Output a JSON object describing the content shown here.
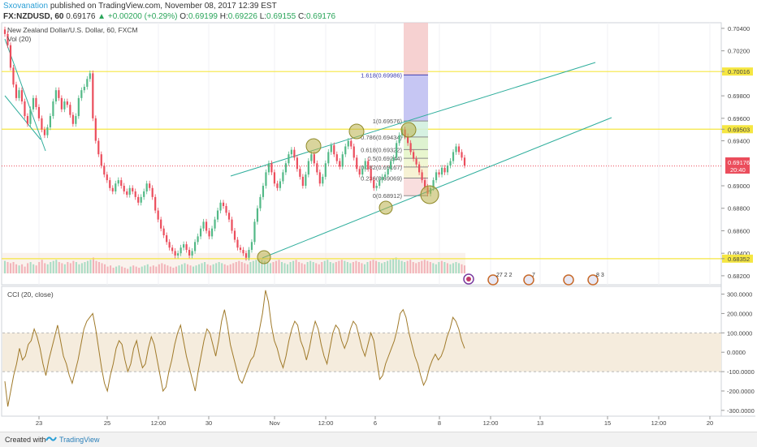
{
  "header": {
    "publisher": "Sxovanation",
    "published_text": "published on TradingView.com, November 08, 2017 12:39 EST",
    "symbol": "FX:NZDUSD, 60",
    "last": "0.69176",
    "change": "▲ +0.00200 (+0.29%)",
    "open_label": "O:",
    "open": "0.69199",
    "high_label": "H:",
    "high": "0.69226",
    "low_label": "L:",
    "low": "0.69155",
    "close_label": "C:",
    "close": "0.69176"
  },
  "footer": {
    "created_with": "Created with",
    "brand": "TradingView"
  },
  "colors": {
    "up": "#53b987",
    "down": "#eb4d5c",
    "hline": "#f5e642",
    "channel": "#2fae9c",
    "cci": "#a07a2a",
    "band": "#f5ecdd",
    "fib_upper": "#b8b8f0",
    "fib_top": "#f4c6c6"
  },
  "chart_data": [
    {
      "type": "candlestick",
      "title": "New Zealand Dollar/U.S. Dollar, 60, FXCM",
      "indicator_label": "Vol (20)",
      "x_tick_labels": [
        "23",
        "25",
        "12:00",
        "30",
        "Nov",
        "12:00",
        "6",
        "8",
        "12:00",
        "13",
        "15",
        "12:00",
        "20"
      ],
      "y_tick_labels": [
        "0.70400",
        "0.70200",
        "0.70016",
        "0.69800",
        "0.69600",
        "0.69503",
        "0.69400",
        "0.69176",
        "0.69000",
        "0.68800",
        "0.68600",
        "0.68400",
        "0.68352",
        "0.68200"
      ],
      "ylim": [
        0.6812,
        0.7045
      ],
      "current_price": {
        "price": "0.69176",
        "countdown": "20:40"
      },
      "horizontal_levels": [
        {
          "price": 0.70016,
          "label": "0.70016"
        },
        {
          "price": 0.69503,
          "label": "0.69503"
        },
        {
          "price": 0.68352,
          "label": "0.68352"
        }
      ],
      "fibonacci": [
        {
          "price": 0.69986,
          "label": "1.618(0.69986)"
        },
        {
          "price": 0.69576,
          "label": "1(0.69576)"
        },
        {
          "price": 0.69434,
          "label": "0.786(0.69434)"
        },
        {
          "price": 0.69322,
          "label": "0.618(0.69322)"
        },
        {
          "price": 0.69244,
          "label": "0.5(0.69244)"
        },
        {
          "price": 0.69167,
          "label": "0.382(0.69167)"
        },
        {
          "price": 0.69069,
          "label": "0.236(0.69069)"
        },
        {
          "price": 0.68912,
          "label": "0(0.68912)"
        }
      ],
      "event_labels": [
        "27 2 2",
        "7",
        "8 3"
      ],
      "close_series": [
        0.7035,
        0.7025,
        0.7005,
        0.699,
        0.6978,
        0.6985,
        0.6975,
        0.6962,
        0.6955,
        0.6968,
        0.6978,
        0.697,
        0.696,
        0.695,
        0.6945,
        0.6952,
        0.6962,
        0.6975,
        0.6985,
        0.6978,
        0.6968,
        0.6975,
        0.6972,
        0.6963,
        0.6955,
        0.6962,
        0.6978,
        0.6985,
        0.6988,
        0.6995,
        0.7,
        0.696,
        0.694,
        0.6928,
        0.6918,
        0.691,
        0.6905,
        0.6898,
        0.6895,
        0.6902,
        0.6905,
        0.69,
        0.6895,
        0.6892,
        0.6898,
        0.6895,
        0.689,
        0.6885,
        0.689,
        0.6895,
        0.6902,
        0.6898,
        0.689,
        0.6878,
        0.687,
        0.6862,
        0.6856,
        0.685,
        0.6845,
        0.6842,
        0.6838,
        0.684,
        0.6845,
        0.6848,
        0.6843,
        0.6838,
        0.6842,
        0.685,
        0.6855,
        0.6862,
        0.6868,
        0.686,
        0.6855,
        0.6862,
        0.687,
        0.6878,
        0.6885,
        0.6882,
        0.6876,
        0.687,
        0.686,
        0.6852,
        0.6845,
        0.6843,
        0.684,
        0.6836,
        0.6843,
        0.685,
        0.6868,
        0.688,
        0.689,
        0.69,
        0.6912,
        0.692,
        0.6912,
        0.6902,
        0.6898,
        0.6904,
        0.6912,
        0.692,
        0.6928,
        0.6932,
        0.6925,
        0.6915,
        0.6908,
        0.69,
        0.691,
        0.6922,
        0.6928,
        0.692,
        0.6912,
        0.6902,
        0.6908,
        0.692,
        0.693,
        0.6936,
        0.6928,
        0.6922,
        0.6917,
        0.6928,
        0.6935,
        0.694,
        0.6935,
        0.6925,
        0.6915,
        0.691,
        0.6915,
        0.6922,
        0.6915,
        0.6905,
        0.6898,
        0.69,
        0.6905,
        0.6908,
        0.691,
        0.6915,
        0.6922,
        0.6925,
        0.6938,
        0.6945,
        0.695,
        0.6944,
        0.6938,
        0.693,
        0.6924,
        0.6919,
        0.6912,
        0.6905,
        0.6899,
        0.6893,
        0.6898,
        0.6905,
        0.6912,
        0.691,
        0.6916,
        0.6912,
        0.6918,
        0.6922,
        0.693,
        0.6935,
        0.693,
        0.6925,
        0.6918
      ],
      "volume_series": [
        0.55,
        0.5,
        0.45,
        0.5,
        0.4,
        0.35,
        0.4,
        0.3,
        0.45,
        0.5,
        0.4,
        0.35,
        0.5,
        0.6,
        0.45,
        0.4,
        0.5,
        0.55,
        0.6,
        0.5,
        0.45,
        0.4,
        0.5,
        0.45,
        0.55,
        0.5,
        0.4,
        0.45,
        0.5,
        0.55,
        0.6,
        0.7,
        0.55,
        0.5,
        0.45,
        0.4,
        0.3,
        0.35,
        0.25,
        0.3,
        0.35,
        0.3,
        0.25,
        0.2,
        0.3,
        0.35,
        0.3,
        0.25,
        0.3,
        0.35,
        0.4,
        0.3,
        0.35,
        0.3,
        0.4,
        0.45,
        0.4,
        0.35,
        0.3,
        0.25,
        0.3,
        0.35,
        0.4,
        0.45,
        0.4,
        0.35,
        0.3,
        0.35,
        0.4,
        0.45,
        0.5,
        0.4,
        0.35,
        0.4,
        0.45,
        0.5,
        0.45,
        0.4,
        0.35,
        0.4,
        0.45,
        0.5,
        0.55,
        0.5,
        0.45,
        0.4,
        0.5,
        0.55,
        0.6,
        0.65,
        0.6,
        0.55,
        0.5,
        0.45,
        0.5,
        0.55,
        0.6,
        0.5,
        0.45,
        0.4,
        0.5,
        0.55,
        0.6,
        0.5,
        0.45,
        0.4,
        0.5,
        0.55,
        0.5,
        0.45,
        0.4,
        0.5,
        0.55,
        0.6,
        0.5,
        0.45,
        0.5,
        0.55,
        0.6,
        0.55,
        0.5,
        0.45,
        0.5,
        0.55,
        0.5,
        0.45,
        0.4,
        0.5,
        0.55,
        0.6,
        0.55,
        0.5,
        0.45,
        0.5,
        0.55,
        0.6,
        0.65,
        0.7,
        0.6,
        0.55,
        0.5,
        0.55,
        0.6,
        0.5,
        0.45,
        0.5,
        0.55,
        0.6,
        0.55,
        0.5,
        0.45,
        0.4,
        0.5,
        0.55,
        0.5,
        0.45,
        0.4,
        0.45,
        0.5,
        0.45,
        0.4,
        0.35
      ]
    },
    {
      "type": "line",
      "title": "CCI (20, close)",
      "y_tick_labels": [
        "300.0000",
        "200.0000",
        "100.0000",
        "0.0000",
        "-100.0000",
        "-200.0000",
        "-300.0000"
      ],
      "ylim": [
        -330,
        340
      ],
      "band": [
        -100,
        100
      ],
      "series": [
        {
          "values": [
            -150,
            -280,
            -200,
            -120,
            -60,
            20,
            -40,
            -20,
            40,
            60,
            120,
            80,
            20,
            -60,
            -120,
            -40,
            20,
            80,
            140,
            60,
            -20,
            -60,
            -120,
            -160,
            -100,
            -40,
            40,
            120,
            160,
            180,
            200,
            120,
            20,
            -80,
            -160,
            -200,
            -120,
            -60,
            20,
            60,
            40,
            -40,
            -100,
            -60,
            20,
            60,
            -20,
            -80,
            -60,
            20,
            80,
            40,
            -40,
            -120,
            -200,
            -180,
            -100,
            -40,
            40,
            100,
            140,
            60,
            -20,
            -80,
            -140,
            -200,
            -100,
            -20,
            60,
            120,
            100,
            40,
            -20,
            60,
            160,
            220,
            140,
            40,
            -20,
            -80,
            -140,
            -160,
            -120,
            -80,
            -40,
            -20,
            40,
            120,
            200,
            320,
            260,
            140,
            60,
            20,
            -40,
            -80,
            -20,
            60,
            120,
            160,
            140,
            60,
            20,
            -40,
            20,
            100,
            160,
            120,
            40,
            -20,
            -60,
            20,
            100,
            140,
            120,
            60,
            20,
            60,
            120,
            160,
            140,
            80,
            20,
            -20,
            40,
            100,
            60,
            -40,
            -140,
            -120,
            -60,
            -20,
            20,
            60,
            120,
            200,
            220,
            180,
            100,
            40,
            -20,
            -60,
            -120,
            -170,
            -140,
            -80,
            -40,
            -10,
            -40,
            -20,
            20,
            80,
            120,
            180,
            160,
            120,
            60,
            20
          ]
        }
      ]
    }
  ]
}
